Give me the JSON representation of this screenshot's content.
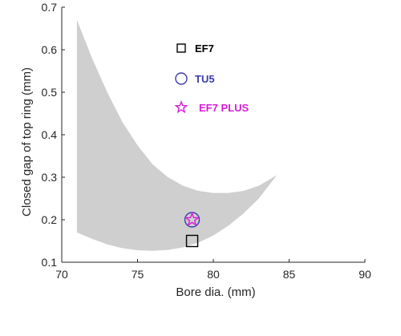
{
  "chart_data": {
    "type": "scatter",
    "xlabel": "Bore dia. (mm)",
    "ylabel": "Closed gap of top ring (mm)",
    "xlim": [
      70,
      90
    ],
    "ylim": [
      0.1,
      0.7
    ],
    "xticks": [
      70,
      75,
      80,
      85,
      90
    ],
    "yticks": [
      0.1,
      0.2,
      0.3,
      0.4,
      0.5,
      0.6,
      0.7
    ],
    "xtick_labels": [
      "70",
      "75",
      "80",
      "85",
      "90"
    ],
    "ytick_labels": [
      "0.1",
      "0.2",
      "0.3",
      "0.4",
      "0.5",
      "0.6",
      "0.7"
    ],
    "grid": false,
    "legend_position": "top-center",
    "band": {
      "color": "#cfcfcf",
      "upper": [
        [
          71.0,
          0.67
        ],
        [
          72.0,
          0.58
        ],
        [
          73.0,
          0.5
        ],
        [
          74.0,
          0.43
        ],
        [
          75.0,
          0.375
        ],
        [
          76.0,
          0.33
        ],
        [
          77.0,
          0.3
        ],
        [
          78.0,
          0.28
        ],
        [
          79.0,
          0.268
        ],
        [
          80.0,
          0.263
        ],
        [
          81.0,
          0.263
        ],
        [
          82.0,
          0.268
        ],
        [
          83.0,
          0.28
        ],
        [
          84.2,
          0.305
        ]
      ],
      "lower": [
        [
          71.0,
          0.17
        ],
        [
          72.0,
          0.155
        ],
        [
          73.0,
          0.142
        ],
        [
          74.0,
          0.133
        ],
        [
          75.0,
          0.128
        ],
        [
          76.0,
          0.127
        ],
        [
          77.0,
          0.129
        ],
        [
          78.0,
          0.135
        ],
        [
          79.0,
          0.146
        ],
        [
          80.0,
          0.163
        ],
        [
          81.0,
          0.186
        ],
        [
          82.0,
          0.215
        ],
        [
          83.0,
          0.25
        ],
        [
          84.2,
          0.305
        ]
      ]
    },
    "series": [
      {
        "name": "EF7",
        "marker": "square",
        "color": "#000000",
        "x": 78.6,
        "y": 0.15
      },
      {
        "name": "TU5",
        "marker": "circle",
        "color": "#3b3bb0",
        "x": 78.6,
        "y": 0.2
      },
      {
        "name": "EF7 PLUS",
        "marker": "star",
        "color": "#d81bd8",
        "x": 78.6,
        "y": 0.2
      }
    ]
  }
}
